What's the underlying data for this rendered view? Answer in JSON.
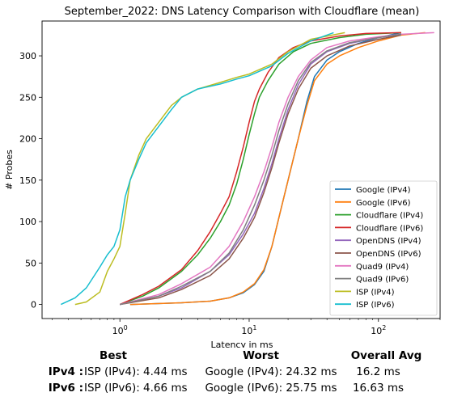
{
  "chart_data": {
    "type": "line",
    "title": "September_2022: DNS Latency Comparison with Cloudflare (mean)",
    "xlabel": "Latency in ms",
    "ylabel": "# Probes",
    "xscale": "log",
    "xlim": [
      0.25,
      300
    ],
    "ylim": [
      -17,
      342
    ],
    "xticks": [
      1,
      10,
      100
    ],
    "xtick_labels": [
      "10^0",
      "10^1",
      "10^2"
    ],
    "yticks": [
      0,
      50,
      100,
      150,
      200,
      250,
      300
    ],
    "legend_position": "lower right",
    "series": [
      {
        "name": "Google (IPv4)",
        "color": "#1f77b4",
        "x": [
          1.2,
          3,
          5,
          7,
          9,
          11,
          13,
          15,
          17,
          20,
          24,
          28,
          32,
          40,
          50,
          70,
          100,
          150
        ],
        "y": [
          0,
          2,
          4,
          8,
          14,
          24,
          40,
          70,
          105,
          150,
          200,
          245,
          275,
          295,
          305,
          315,
          322,
          328
        ]
      },
      {
        "name": "Google (IPv6)",
        "color": "#ff7f0e",
        "x": [
          1.2,
          3,
          5,
          7,
          9,
          11,
          13,
          15,
          17,
          20,
          24,
          28,
          32,
          40,
          50,
          70,
          100,
          150,
          230
        ],
        "y": [
          0,
          2,
          4,
          8,
          15,
          25,
          42,
          70,
          105,
          150,
          200,
          240,
          270,
          290,
          300,
          310,
          318,
          325,
          328
        ]
      },
      {
        "name": "Cloudflare (IPv4)",
        "color": "#2ca02c",
        "x": [
          1.0,
          1.5,
          2,
          3,
          4,
          5,
          6,
          7,
          8,
          9,
          10,
          11,
          12,
          14,
          17,
          22,
          30,
          50,
          80,
          150
        ],
        "y": [
          0,
          10,
          20,
          40,
          60,
          80,
          100,
          120,
          145,
          175,
          205,
          230,
          250,
          270,
          290,
          305,
          315,
          322,
          326,
          328
        ]
      },
      {
        "name": "Cloudflare (IPv6)",
        "color": "#d62728",
        "x": [
          1.0,
          1.5,
          2,
          3,
          4,
          5,
          6,
          7,
          8,
          9,
          10,
          11,
          12,
          14,
          17,
          22,
          30,
          50,
          80,
          150
        ],
        "y": [
          0,
          12,
          22,
          42,
          65,
          88,
          110,
          130,
          160,
          190,
          220,
          245,
          260,
          280,
          298,
          310,
          318,
          324,
          327,
          328
        ]
      },
      {
        "name": "OpenDNS (IPv4)",
        "color": "#9467bd",
        "x": [
          1.0,
          2,
          3,
          5,
          7,
          9,
          11,
          13,
          15,
          17,
          20,
          24,
          30,
          40,
          60,
          100,
          150
        ],
        "y": [
          0,
          10,
          20,
          40,
          60,
          85,
          110,
          140,
          170,
          200,
          235,
          265,
          290,
          305,
          315,
          322,
          326
        ]
      },
      {
        "name": "OpenDNS (IPv6)",
        "color": "#8c564b",
        "x": [
          1.0,
          2,
          3,
          5,
          7,
          9,
          11,
          13,
          15,
          17,
          20,
          24,
          30,
          40,
          60,
          100,
          150
        ],
        "y": [
          0,
          8,
          18,
          35,
          55,
          80,
          105,
          135,
          165,
          195,
          230,
          260,
          285,
          300,
          312,
          320,
          325
        ]
      },
      {
        "name": "Quad9 (IPv4)",
        "color": "#e377c2",
        "x": [
          1.0,
          2,
          3,
          5,
          7,
          9,
          11,
          13,
          15,
          17,
          20,
          24,
          30,
          40,
          60,
          100,
          150,
          270
        ],
        "y": [
          0,
          12,
          25,
          45,
          70,
          100,
          130,
          160,
          190,
          220,
          250,
          275,
          295,
          310,
          318,
          323,
          326,
          328
        ]
      },
      {
        "name": "Quad9 (IPv6)",
        "color": "#7f7f7f",
        "x": [
          1.0,
          2,
          3,
          5,
          7,
          9,
          11,
          13,
          15,
          17,
          20,
          24,
          30,
          40,
          60,
          100,
          150
        ],
        "y": [
          0,
          10,
          22,
          40,
          62,
          90,
          120,
          150,
          180,
          210,
          242,
          270,
          292,
          306,
          316,
          322,
          326
        ]
      },
      {
        "name": "ISP (IPv4)",
        "color": "#bcbd22",
        "x": [
          0.45,
          0.55,
          0.7,
          0.8,
          0.9,
          1.0,
          1.1,
          1.2,
          1.4,
          1.6,
          2,
          2.5,
          3,
          4,
          6,
          8,
          10,
          15,
          20,
          30,
          55
        ],
        "y": [
          0,
          3,
          15,
          40,
          55,
          70,
          110,
          150,
          180,
          200,
          220,
          240,
          250,
          260,
          268,
          274,
          278,
          290,
          305,
          320,
          328
        ]
      },
      {
        "name": "ISP (IPv6)",
        "color": "#17becf",
        "x": [
          0.35,
          0.45,
          0.55,
          0.7,
          0.8,
          0.9,
          1.0,
          1.1,
          1.2,
          1.4,
          1.6,
          2,
          2.5,
          3,
          4,
          6,
          8,
          10,
          15,
          20,
          30,
          45
        ],
        "y": [
          0,
          8,
          20,
          45,
          60,
          70,
          90,
          130,
          150,
          175,
          195,
          215,
          235,
          250,
          260,
          266,
          272,
          276,
          288,
          303,
          318,
          328
        ]
      }
    ]
  },
  "summary": {
    "col_best": "Best",
    "col_worst": "Worst",
    "col_avg": "Overall Avg",
    "ipv4_label": "IPv4 :",
    "ipv4_best": "ISP (IPv4): 4.44 ms",
    "ipv4_worst": "Google (IPv4): 24.32 ms",
    "ipv4_avg": "16.2 ms",
    "ipv6_label": "IPv6 :",
    "ipv6_best": "ISP (IPv6): 4.66 ms",
    "ipv6_worst": "Google (IPv6): 25.75 ms",
    "ipv6_avg": "16.63 ms"
  }
}
